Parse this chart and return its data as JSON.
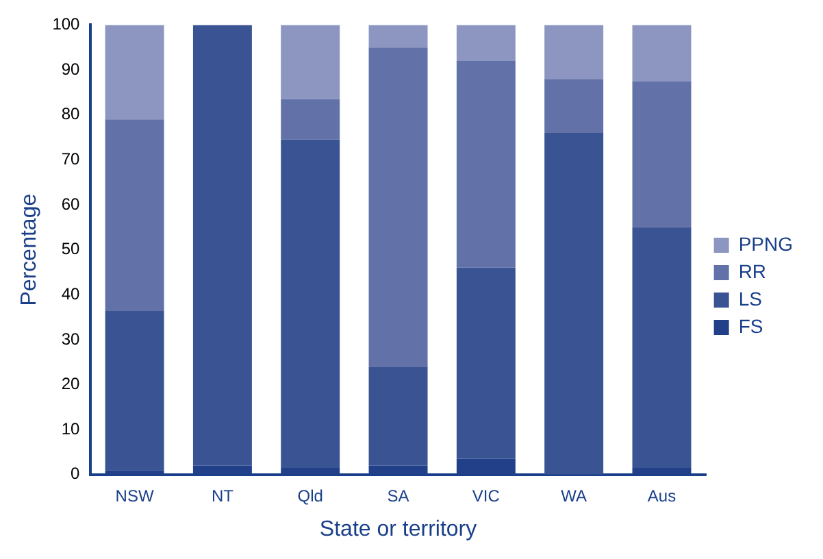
{
  "chart_data": {
    "type": "bar",
    "xlabel": "State or territory",
    "ylabel": "Percentage",
    "categories": [
      "NSW",
      "NT",
      "Qld",
      "SA",
      "VIC",
      "WA",
      "Aus"
    ],
    "stacked": true,
    "ylim": [
      0,
      100
    ],
    "yticks": [
      0,
      10,
      20,
      30,
      40,
      50,
      60,
      70,
      80,
      90,
      100
    ],
    "grid": false,
    "legend": "right",
    "series": [
      {
        "name": "FS",
        "color": "#22408a",
        "values": [
          1,
          2,
          1.5,
          2,
          3.5,
          0,
          1.5
        ]
      },
      {
        "name": "LS",
        "color": "#3a5393",
        "values": [
          35.5,
          98,
          73,
          22,
          42.5,
          76,
          53.5
        ]
      },
      {
        "name": "RR",
        "color": "#6272a8",
        "values": [
          42.5,
          0,
          9,
          71,
          46,
          12,
          32.5
        ]
      },
      {
        "name": "PPNG",
        "color": "#8c96c0",
        "values": [
          21,
          0,
          16.5,
          5,
          8,
          12,
          12.5
        ]
      }
    ]
  }
}
